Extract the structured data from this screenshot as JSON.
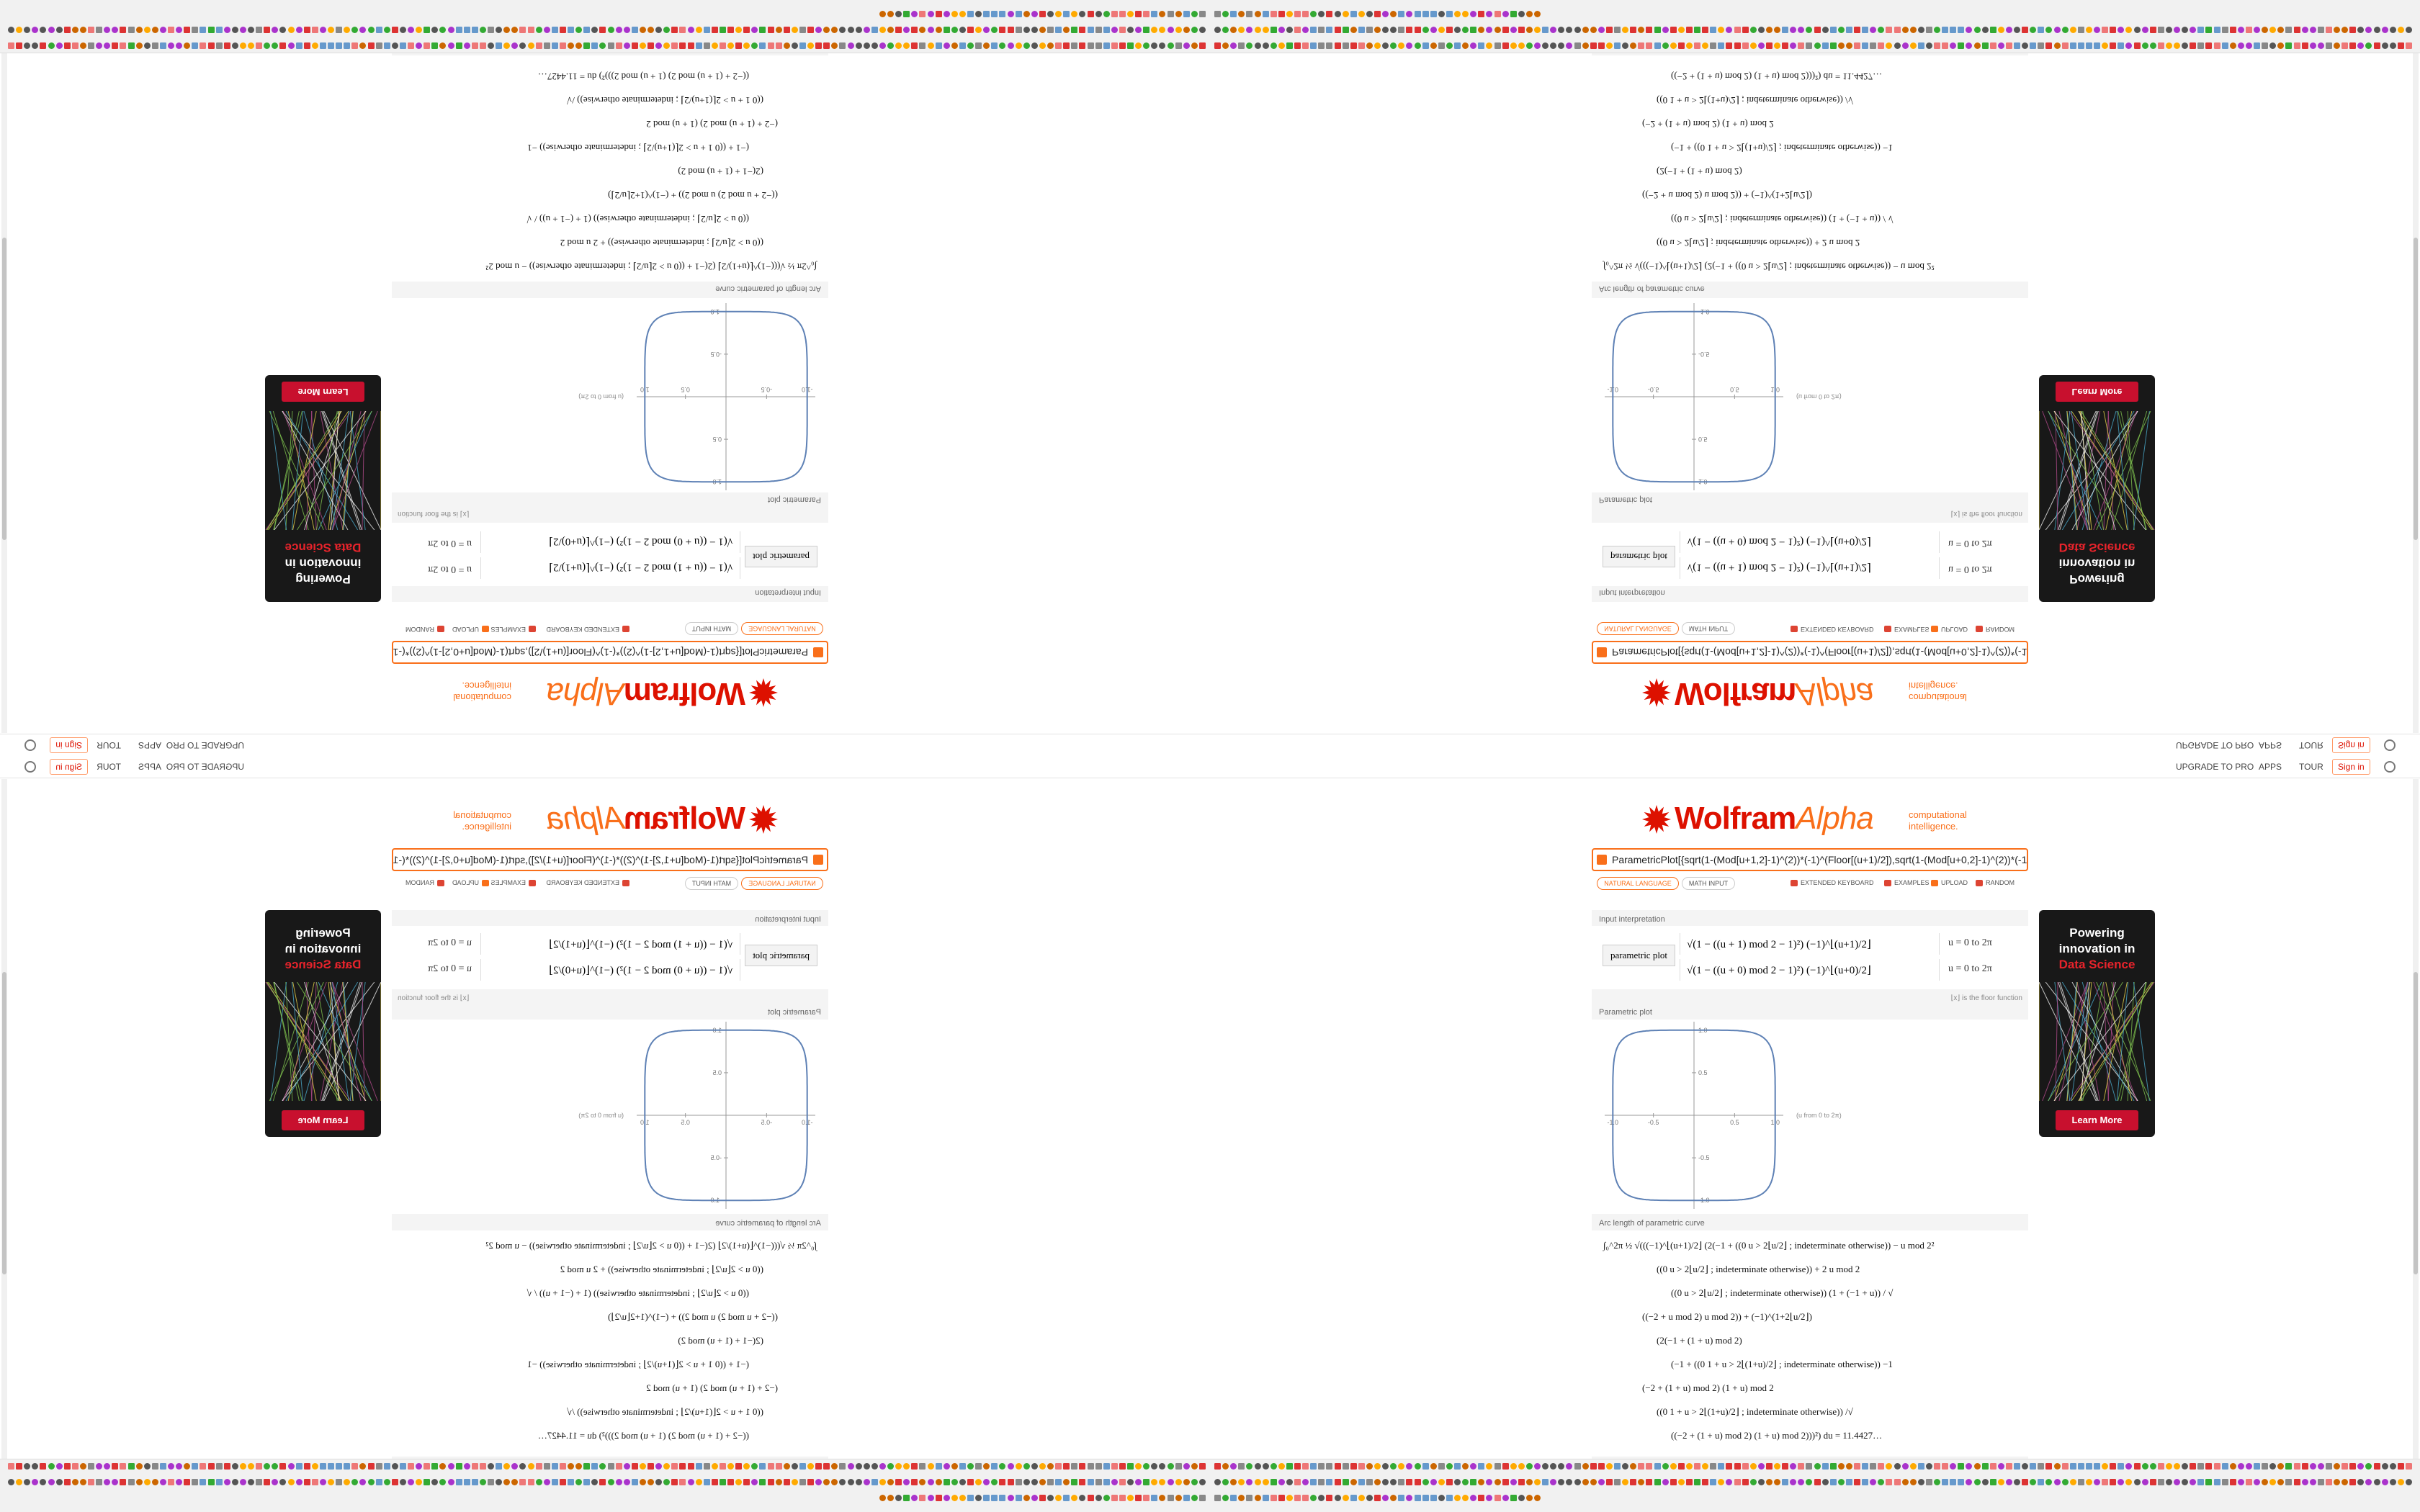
{
  "header": {
    "links": [
      "UPGRADE TO PRO",
      "APPS",
      "TOUR"
    ],
    "sign_in": "Sign in"
  },
  "logo": {
    "name_red": "Wolfram",
    "name_orange": "Alpha",
    "tagline": [
      "computational",
      "intelligence."
    ]
  },
  "search": {
    "query": "ParametricPlot[{sqrt(1-(Mod[u+1,2]-1)^(2))*(-1)^(Floor[(u+1)/2]),sqrt(1-(Mod[u+0,2]-1)^(2))*(-1)^(Floo"
  },
  "input_modes": [
    "NATURAL LANGUAGE",
    "MATH INPUT"
  ],
  "tools": [
    "EXTENDED KEYBOARD",
    "EXAMPLES",
    "UPLOAD",
    "RANDOM"
  ],
  "input": {
    "title": "Input interpretation",
    "label": "parametric plot",
    "rows": [
      {
        "expr": "√(1 − ((u + 1) mod 2 − 1)²) (−1)^⌊(u+1)/2⌋",
        "range": "u = 0 to 2π"
      },
      {
        "expr": "√(1 − ((u + 0) mod 2 − 1)²) (−1)^⌊(u+0)/2⌋",
        "range": "u = 0 to 2π"
      }
    ],
    "note": "⌊x⌋ is the floor function"
  },
  "plot": {
    "title": "Parametric plot",
    "caption": "(u from 0 to 2π)",
    "xlim": [
      -1.1,
      1.1
    ],
    "ylim": [
      -1.1,
      1.1
    ],
    "xticks": [
      {
        "value": -1,
        "label": "-1.0"
      },
      -0.5,
      0.5,
      {
        "value": 1,
        "label": "1.0"
      }
    ],
    "yticks": [
      {
        "value": -1,
        "label": "-1.0"
      },
      -0.5,
      0.5,
      {
        "value": 1,
        "label": "1.0"
      }
    ]
  },
  "arc_length": {
    "title": "Arc length of parametric curve",
    "lines": [
      "∫₀^2π ½ √(((−1)^⌊(u+1)/2⌋ (2(−1 + ((0  u > 2⌊u/2⌋ ; indeterminate  otherwise)) − u mod 2²",
      "((0  u > 2⌊u/2⌋ ; indeterminate  otherwise)) + 2 u mod 2",
      "((0  u > 2⌊u/2⌋ ; indeterminate  otherwise)) (1 + (−1 + u)) / √",
      "((−2 + u mod 2) u mod 2)) + (−1)^(1+2⌊u/2⌋)",
      "(2(−1 + (1 + u) mod 2)",
      "(−1 + ((0  1 + u > 2⌊(1+u)/2⌋ ; indeterminate  otherwise)) −1",
      "(−2 + (1 + u) mod 2) (1 + u) mod 2",
      "((0  1 + u > 2⌊(1+u)/2⌋ ; indeterminate  otherwise)) /√",
      "((−2 + (1 + u) mod 2) (1 + u) mod 2)))²) du = 11.4427…"
    ]
  },
  "ad": {
    "lines": [
      "Powering",
      "innovation in"
    ],
    "highlight": "Data Science",
    "button": "Learn More"
  }
}
